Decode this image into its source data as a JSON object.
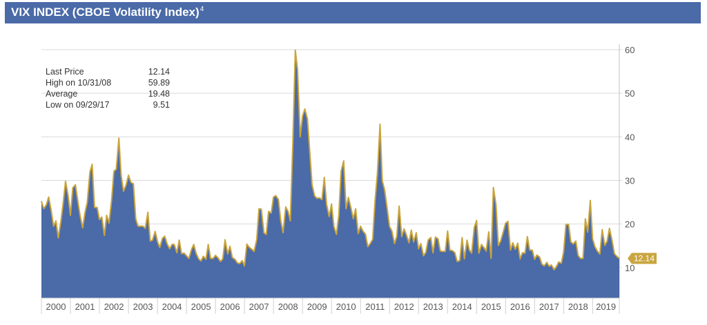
{
  "header": {
    "title": "VIX INDEX (CBOE Volatility Index)",
    "footnote": "4"
  },
  "stats": [
    {
      "label": "Last Price",
      "value": "12.14"
    },
    {
      "label": "High on 10/31/08",
      "value": "59.89"
    },
    {
      "label": "Average",
      "value": "19.48"
    },
    {
      "label": "Low on  09/29/17",
      "value": "9.51"
    }
  ],
  "colors": {
    "header": "#4a6aa8",
    "area": "#4a6aa8",
    "line": "#c9a53f",
    "badge": "#c9a53f",
    "grid": "#d9d9d9"
  },
  "chart_data": {
    "type": "area",
    "title": "VIX INDEX (CBOE Volatility Index)",
    "x_start_year": 2000,
    "x_end_year": 2019.92,
    "ylim": [
      3,
      60
    ],
    "y_ticks": [
      10,
      20,
      30,
      40,
      50,
      60
    ],
    "x_tick_labels": [
      "2000",
      "2001",
      "2002",
      "2003",
      "2004",
      "2005",
      "2006",
      "2007",
      "2008",
      "2009",
      "2010",
      "2011",
      "2012",
      "2013",
      "2014",
      "2015",
      "2016",
      "2017",
      "2018",
      "2019"
    ],
    "last_value_label": "12.14",
    "grid": true,
    "x": [
      2000.0,
      2000.08,
      2000.17,
      2000.25,
      2000.33,
      2000.42,
      2000.5,
      2000.58,
      2000.67,
      2000.75,
      2000.83,
      2000.92,
      2001.0,
      2001.08,
      2001.17,
      2001.25,
      2001.33,
      2001.42,
      2001.5,
      2001.58,
      2001.67,
      2001.75,
      2001.83,
      2001.92,
      2002.0,
      2002.08,
      2002.17,
      2002.25,
      2002.33,
      2002.42,
      2002.5,
      2002.58,
      2002.67,
      2002.75,
      2002.83,
      2002.92,
      2003.0,
      2003.08,
      2003.17,
      2003.25,
      2003.33,
      2003.42,
      2003.5,
      2003.58,
      2003.67,
      2003.75,
      2003.83,
      2003.92,
      2004.0,
      2004.08,
      2004.17,
      2004.25,
      2004.33,
      2004.42,
      2004.5,
      2004.58,
      2004.67,
      2004.75,
      2004.83,
      2004.92,
      2005.0,
      2005.08,
      2005.17,
      2005.25,
      2005.33,
      2005.42,
      2005.5,
      2005.58,
      2005.67,
      2005.75,
      2005.83,
      2005.92,
      2006.0,
      2006.08,
      2006.17,
      2006.25,
      2006.33,
      2006.42,
      2006.5,
      2006.58,
      2006.67,
      2006.75,
      2006.83,
      2006.92,
      2007.0,
      2007.08,
      2007.17,
      2007.25,
      2007.33,
      2007.42,
      2007.5,
      2007.58,
      2007.67,
      2007.75,
      2007.83,
      2007.92,
      2008.0,
      2008.08,
      2008.17,
      2008.25,
      2008.33,
      2008.42,
      2008.5,
      2008.58,
      2008.67,
      2008.75,
      2008.83,
      2008.92,
      2009.0,
      2009.08,
      2009.17,
      2009.25,
      2009.33,
      2009.42,
      2009.5,
      2009.58,
      2009.67,
      2009.75,
      2009.83,
      2009.92,
      2010.0,
      2010.08,
      2010.17,
      2010.25,
      2010.33,
      2010.42,
      2010.5,
      2010.58,
      2010.67,
      2010.75,
      2010.83,
      2010.92,
      2011.0,
      2011.08,
      2011.17,
      2011.25,
      2011.33,
      2011.42,
      2011.5,
      2011.58,
      2011.67,
      2011.75,
      2011.83,
      2011.92,
      2012.0,
      2012.08,
      2012.17,
      2012.25,
      2012.33,
      2012.42,
      2012.5,
      2012.58,
      2012.67,
      2012.75,
      2012.83,
      2012.92,
      2013.0,
      2013.08,
      2013.17,
      2013.25,
      2013.33,
      2013.42,
      2013.5,
      2013.58,
      2013.67,
      2013.75,
      2013.83,
      2013.92,
      2014.0,
      2014.08,
      2014.17,
      2014.25,
      2014.33,
      2014.42,
      2014.5,
      2014.58,
      2014.67,
      2014.75,
      2014.83,
      2014.92,
      2015.0,
      2015.08,
      2015.17,
      2015.25,
      2015.33,
      2015.42,
      2015.5,
      2015.58,
      2015.67,
      2015.75,
      2015.83,
      2015.92,
      2016.0,
      2016.08,
      2016.17,
      2016.25,
      2016.33,
      2016.42,
      2016.5,
      2016.58,
      2016.67,
      2016.75,
      2016.83,
      2016.92,
      2017.0,
      2017.08,
      2017.17,
      2017.25,
      2017.33,
      2017.42,
      2017.5,
      2017.58,
      2017.67,
      2017.75,
      2017.83,
      2017.92,
      2018.0,
      2018.08,
      2018.17,
      2018.25,
      2018.33,
      2018.42,
      2018.5,
      2018.58,
      2018.67,
      2018.75,
      2018.83,
      2018.92,
      2019.0,
      2019.08,
      2019.17,
      2019.25,
      2019.33,
      2019.42,
      2019.5,
      2019.58,
      2019.67,
      2019.75,
      2019.83,
      2019.92
    ],
    "values": [
      25.2,
      23.5,
      24.4,
      26.2,
      23.3,
      19.5,
      20.7,
      16.8,
      20.6,
      24.8,
      29.8,
      26.5,
      22.0,
      28.3,
      29.0,
      25.5,
      22.0,
      19.1,
      22.5,
      25.0,
      31.9,
      33.7,
      23.8,
      23.8,
      21.0,
      21.6,
      17.4,
      22.0,
      20.2,
      25.6,
      32.1,
      32.6,
      39.7,
      31.1,
      27.5,
      29.0,
      31.2,
      29.6,
      29.2,
      21.2,
      19.5,
      19.5,
      19.5,
      19.0,
      22.7,
      16.1,
      16.3,
      18.3,
      16.0,
      14.6,
      16.7,
      17.2,
      15.5,
      14.3,
      15.3,
      15.3,
      13.4,
      16.3,
      13.2,
      13.3,
      12.7,
      12.1,
      14.1,
      15.3,
      13.3,
      12.0,
      11.5,
      12.6,
      11.9,
      15.3,
      12.1,
      12.1,
      12.8,
      12.3,
      11.4,
      12.0,
      16.4,
      13.1,
      14.9,
      12.3,
      11.9,
      11.1,
      10.9,
      11.6,
      10.4,
      15.4,
      14.6,
      14.2,
      13.7,
      16.4,
      23.5,
      23.4,
      18.0,
      17.6,
      22.9,
      22.5,
      26.2,
      26.5,
      25.6,
      20.8,
      18.0,
      23.9,
      22.9,
      20.7,
      39.4,
      59.9,
      55.3,
      40.0,
      44.8,
      46.4,
      44.1,
      36.5,
      29.0,
      26.4,
      25.9,
      26.0,
      25.6,
      30.7,
      24.5,
      21.7,
      24.6,
      19.5,
      17.6,
      22.0,
      32.1,
      34.5,
      23.5,
      26.1,
      23.7,
      21.2,
      23.5,
      17.8,
      19.5,
      18.4,
      17.7,
      14.8,
      15.5,
      16.5,
      25.3,
      31.6,
      42.9,
      29.9,
      27.8,
      23.4,
      19.4,
      18.4,
      15.5,
      17.2,
      24.1,
      17.1,
      18.9,
      17.5,
      15.7,
      18.6,
      15.9,
      18.0,
      14.3,
      15.5,
      12.7,
      13.5,
      16.3,
      16.9,
      13.4,
      17.0,
      16.6,
      13.8,
      13.7,
      13.7,
      18.4,
      14.0,
      13.9,
      13.4,
      11.4,
      11.6,
      16.9,
      12.0,
      16.3,
      14.0,
      13.3,
      19.2,
      20.8,
      13.3,
      15.3,
      14.6,
      13.8,
      18.2,
      12.1,
      28.4,
      24.4,
      15.1,
      16.1,
      18.2,
      20.2,
      20.6,
      14.0,
      15.7,
      14.2,
      15.6,
      12.0,
      13.4,
      13.3,
      17.1,
      14.0,
      14.0,
      11.9,
      12.9,
      12.4,
      10.8,
      10.4,
      11.2,
      10.3,
      10.6,
      9.5,
      10.2,
      11.3,
      11.0,
      13.5,
      19.9,
      19.9,
      15.9,
      15.4,
      16.1,
      12.8,
      12.1,
      12.1,
      21.2,
      18.1,
      25.4,
      16.6,
      14.8,
      13.7,
      13.1,
      18.7,
      15.1,
      16.1,
      19.0,
      16.2,
      13.2,
      12.6,
      12.1
    ]
  }
}
